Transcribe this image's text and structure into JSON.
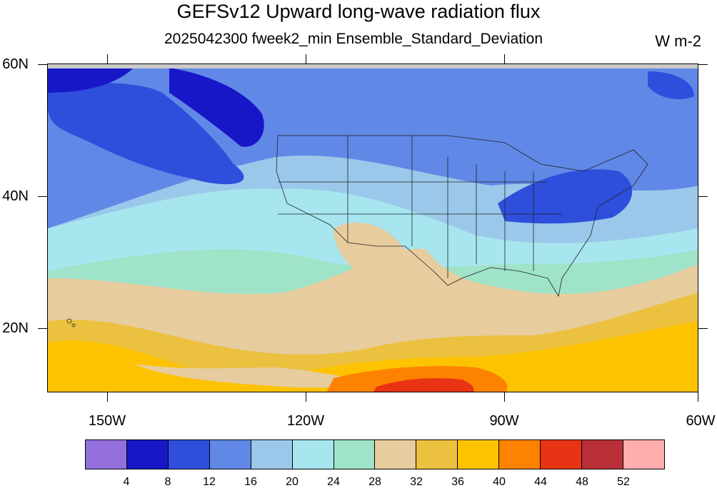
{
  "title": "GEFSv12 Upward long-wave radiation flux",
  "subtitle": "2025042300 fweek2_min Ensemble_Standard_Deviation",
  "units": "W m-2",
  "lat_labels": [
    "60N",
    "40N",
    "20N"
  ],
  "lon_labels": [
    "150W",
    "120W",
    "90W",
    "60W"
  ],
  "colorbar": {
    "colors": [
      "#9370db",
      "#1717c8",
      "#2e4fdc",
      "#6088e6",
      "#9bc8ea",
      "#a7e6ee",
      "#9fe3c8",
      "#e7cc9e",
      "#ecc13f",
      "#fdc300",
      "#fd8200",
      "#e83414",
      "#b92f38",
      "#ffadad"
    ],
    "labels": [
      "4",
      "8",
      "12",
      "16",
      "20",
      "24",
      "28",
      "32",
      "36",
      "40",
      "44",
      "48",
      "52"
    ]
  }
}
